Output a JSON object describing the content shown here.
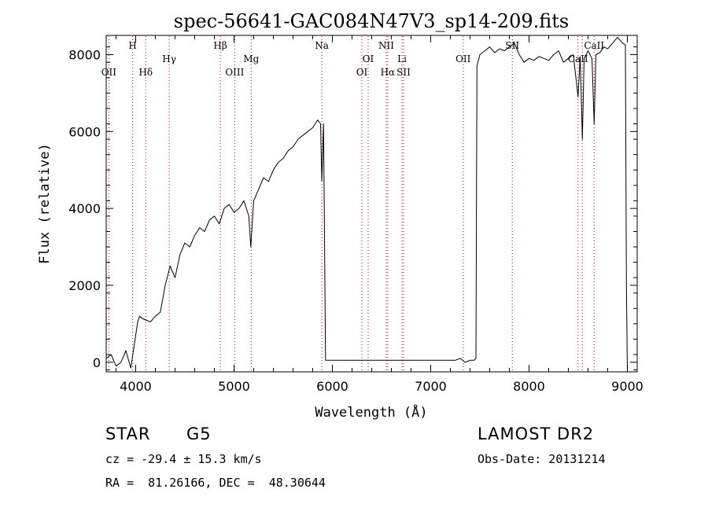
{
  "chart_data": {
    "type": "line",
    "title": "spec-56641-GAC084N47V3_sp14-209.fits",
    "xlabel": "Wavelength (Å)",
    "ylabel": "Flux (relative)",
    "xlim": [
      3700,
      9100
    ],
    "ylim": [
      -250,
      8500
    ],
    "x_ticks": [
      4000,
      5000,
      6000,
      7000,
      8000,
      9000
    ],
    "x_tick_labels": [
      "4000",
      "5000",
      "6000",
      "7000",
      "8000",
      "9000"
    ],
    "y_ticks": [
      0,
      2000,
      4000,
      6000,
      8000
    ],
    "y_tick_labels": [
      "0",
      "2000",
      "4000",
      "6000",
      "8000"
    ],
    "grid": false,
    "line_color": "#000000",
    "marker_color": "#cc0000",
    "series": [
      {
        "x": [
          3700,
          3750,
          3800,
          3850,
          3900,
          3950,
          4000,
          4020,
          4040,
          4060,
          4100,
          4150,
          4200,
          4250,
          4300,
          4350,
          4400,
          4450,
          4500,
          4550,
          4600,
          4650,
          4700,
          4750,
          4800,
          4850,
          4900,
          4950,
          5000,
          5050,
          5100,
          5150,
          5170,
          5200,
          5250,
          5300,
          5350,
          5400,
          5450,
          5500,
          5550,
          5600,
          5650,
          5700,
          5750,
          5800,
          5850,
          5880,
          5893,
          5910,
          5930,
          6000,
          6500,
          7000,
          7150,
          7200,
          7250,
          7300,
          7350,
          7400,
          7440,
          7460,
          7470,
          7500,
          7550,
          7600,
          7650,
          7700,
          7750,
          7800,
          7850,
          7900,
          7950,
          8000,
          8050,
          8100,
          8150,
          8200,
          8250,
          8300,
          8350,
          8400,
          8450,
          8498,
          8520,
          8542,
          8560,
          8600,
          8640,
          8662,
          8680,
          8720,
          8760,
          8800,
          8850,
          8900,
          8950,
          8980,
          8990,
          9000
        ],
        "y": [
          100,
          200,
          -100,
          0,
          300,
          -150,
          700,
          1050,
          1200,
          1150,
          1100,
          1050,
          1200,
          1300,
          2000,
          2500,
          2200,
          2800,
          3100,
          3000,
          3300,
          3500,
          3400,
          3700,
          3800,
          3600,
          4000,
          4100,
          3900,
          4000,
          4200,
          3800,
          3000,
          4200,
          4500,
          4800,
          4700,
          5000,
          5200,
          5300,
          5500,
          5600,
          5800,
          5900,
          6000,
          6100,
          6300,
          6200,
          4700,
          6200,
          50,
          50,
          50,
          50,
          50,
          50,
          50,
          100,
          0,
          50,
          50,
          100,
          7700,
          8000,
          8100,
          8200,
          8050,
          8150,
          8100,
          8200,
          8300,
          8000,
          7800,
          7900,
          7850,
          7950,
          7900,
          7850,
          8000,
          8100,
          7800,
          7900,
          8000,
          6900,
          7950,
          5800,
          7900,
          8100,
          7900,
          6200,
          8000,
          8050,
          8200,
          8150,
          8300,
          8450,
          8300,
          8250,
          2000,
          -250
        ]
      }
    ],
    "annotations": [
      {
        "label": "OII",
        "x": 3727,
        "row": 3
      },
      {
        "label": "H",
        "x": 3969,
        "row": 1
      },
      {
        "label": "Hδ",
        "x": 4102,
        "row": 3
      },
      {
        "label": "Hγ",
        "x": 4341,
        "row": 2
      },
      {
        "label": "Hβ",
        "x": 4861,
        "row": 1
      },
      {
        "label": "OIII",
        "x": 5007,
        "row": 3
      },
      {
        "label": "Mg",
        "x": 5175,
        "row": 2
      },
      {
        "label": "Na",
        "x": 5893,
        "row": 1
      },
      {
        "label": "OI",
        "x": 6300,
        "row": 3
      },
      {
        "label": "OI",
        "x": 6364,
        "row": 2
      },
      {
        "label": "NII",
        "x": 6548,
        "row": 1
      },
      {
        "label": "Hα",
        "x": 6563,
        "row": 3
      },
      {
        "label": "Li",
        "x": 6708,
        "row": 2
      },
      {
        "label": "SII",
        "x": 6724,
        "row": 3
      },
      {
        "label": "OII",
        "x": 7330,
        "row": 2
      },
      {
        "label": "SII",
        "x": 7830,
        "row": 1
      },
      {
        "label": "CaII",
        "x": 8498,
        "row": 2
      },
      {
        "label": "CaII",
        "x": 8662,
        "row": 1
      }
    ],
    "line_markers_x": [
      3727,
      3969,
      4102,
      4341,
      4861,
      5007,
      5175,
      5893,
      6300,
      6364,
      6548,
      6563,
      6708,
      6724,
      7330,
      7830,
      8498,
      8542,
      8662
    ]
  },
  "info": {
    "object_class": "STAR",
    "subclass": "G5",
    "survey": "LAMOST DR2",
    "cz_line": "cz = -29.4 ± 15.3 km/s",
    "obs_date_line": "Obs-Date: 20131214",
    "radec_line": "RA =  81.26166, DEC =  48.30644"
  }
}
